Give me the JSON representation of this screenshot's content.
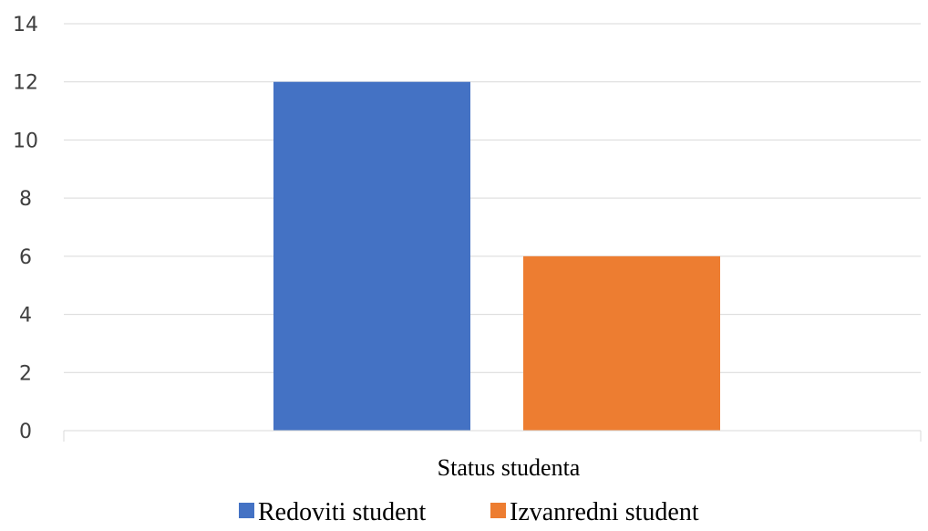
{
  "chart_data": {
    "type": "bar",
    "categories": [
      "Status studenta"
    ],
    "series": [
      {
        "name": "Redoviti student",
        "values": [
          12
        ],
        "color": "#4472C4"
      },
      {
        "name": "Izvanredni student",
        "values": [
          6
        ],
        "color": "#ED7D31"
      }
    ],
    "ylim": [
      0,
      14
    ],
    "yticks": [
      0,
      2,
      4,
      6,
      8,
      10,
      12,
      14
    ],
    "grid": true,
    "legend_position": "bottom"
  }
}
